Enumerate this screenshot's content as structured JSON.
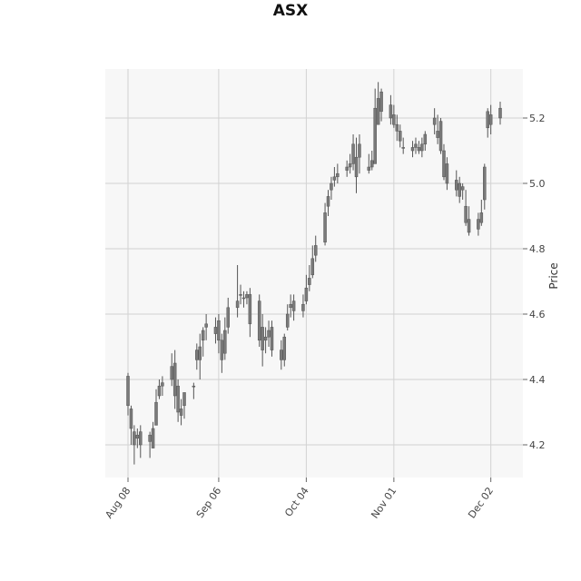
{
  "chart_data": {
    "type": "candlestick",
    "title": "ASX",
    "xlabel": "",
    "ylabel": "Price",
    "y_axis_side": "right",
    "ylim": [
      4.1,
      5.35
    ],
    "yticks": [
      4.2,
      4.4,
      4.6,
      4.8,
      5.0,
      5.2
    ],
    "xtick_labels": [
      "Aug 08",
      "Sep 06",
      "Oct 04",
      "Nov 01",
      "Dec 02"
    ],
    "xtick_dates": [
      "2022-08-08",
      "2022-09-06",
      "2022-10-04",
      "2022-11-01",
      "2022-12-02"
    ],
    "grid": true,
    "colors": {
      "background": "#f7f7f7",
      "grid": "#d2d2d2",
      "candle": "#7a7a7a",
      "candle_edge": "#555555"
    },
    "dates": [
      "2022-08-08",
      "2022-08-09",
      "2022-08-10",
      "2022-08-11",
      "2022-08-12",
      "2022-08-15",
      "2022-08-16",
      "2022-08-17",
      "2022-08-18",
      "2022-08-19",
      "2022-08-22",
      "2022-08-23",
      "2022-08-24",
      "2022-08-25",
      "2022-08-26",
      "2022-08-29",
      "2022-08-30",
      "2022-08-31",
      "2022-09-01",
      "2022-09-02",
      "2022-09-05",
      "2022-09-06",
      "2022-09-07",
      "2022-09-08",
      "2022-09-09",
      "2022-09-12",
      "2022-09-13",
      "2022-09-14",
      "2022-09-15",
      "2022-09-16",
      "2022-09-19",
      "2022-09-20",
      "2022-09-21",
      "2022-09-22",
      "2022-09-23",
      "2022-09-26",
      "2022-09-27",
      "2022-09-28",
      "2022-09-29",
      "2022-09-30",
      "2022-10-03",
      "2022-10-04",
      "2022-10-05",
      "2022-10-06",
      "2022-10-07",
      "2022-10-10",
      "2022-10-11",
      "2022-10-12",
      "2022-10-13",
      "2022-10-14",
      "2022-10-17",
      "2022-10-18",
      "2022-10-19",
      "2022-10-20",
      "2022-10-21",
      "2022-10-24",
      "2022-10-25",
      "2022-10-26",
      "2022-10-27",
      "2022-10-28",
      "2022-10-31",
      "2022-11-01",
      "2022-11-02",
      "2022-11-03",
      "2022-11-04",
      "2022-11-07",
      "2022-11-08",
      "2022-11-09",
      "2022-11-10",
      "2022-11-11",
      "2022-11-14",
      "2022-11-15",
      "2022-11-16",
      "2022-11-17",
      "2022-11-18",
      "2022-11-21",
      "2022-11-22",
      "2022-11-23",
      "2022-11-24",
      "2022-11-25",
      "2022-11-28",
      "2022-11-29",
      "2022-11-30",
      "2022-12-01",
      "2022-12-02",
      "2022-12-05"
    ],
    "open": [
      4.41,
      4.31,
      4.24,
      4.23,
      4.24,
      4.21,
      4.19,
      4.26,
      4.35,
      4.38,
      4.4,
      4.45,
      4.38,
      4.29,
      4.32,
      4.38,
      4.49,
      4.46,
      4.52,
      4.56,
      4.54,
      4.58,
      4.52,
      4.48,
      4.56,
      4.62,
      4.66,
      4.65,
      4.65,
      4.66,
      4.64,
      4.56,
      4.52,
      4.53,
      4.56,
      4.49,
      4.46,
      4.56,
      4.62,
      4.64,
      4.61,
      4.64,
      4.69,
      4.72,
      4.78,
      4.82,
      4.93,
      4.98,
      5.01,
      5.02,
      5.04,
      5.05,
      5.06,
      5.08,
      5.12,
      5.04,
      5.05,
      5.06,
      5.18,
      5.28,
      5.24,
      5.21,
      5.18,
      5.16,
      5.11,
      5.11,
      5.12,
      5.11,
      5.1,
      5.12,
      5.18,
      5.16,
      5.19,
      5.1,
      5.06,
      5.01,
      5.0,
      4.98,
      4.93,
      4.89,
      4.86,
      4.88,
      4.95,
      5.17,
      5.18,
      5.2
    ],
    "high": [
      4.42,
      4.32,
      4.26,
      4.25,
      4.26,
      4.24,
      4.27,
      4.37,
      4.4,
      4.41,
      4.48,
      4.49,
      4.4,
      4.34,
      4.36,
      4.39,
      4.51,
      4.54,
      4.56,
      4.6,
      4.59,
      4.6,
      4.54,
      4.59,
      4.65,
      4.75,
      4.69,
      4.67,
      4.67,
      4.68,
      4.66,
      4.6,
      4.56,
      4.58,
      4.58,
      4.52,
      4.54,
      4.63,
      4.66,
      4.66,
      4.66,
      4.72,
      4.75,
      4.81,
      4.84,
      4.94,
      4.98,
      5.02,
      5.05,
      5.06,
      5.07,
      5.09,
      5.15,
      5.14,
      5.15,
      5.09,
      5.1,
      5.29,
      5.31,
      5.29,
      5.27,
      5.24,
      5.21,
      5.18,
      5.14,
      5.13,
      5.14,
      5.13,
      5.14,
      5.16,
      5.23,
      5.21,
      5.2,
      5.12,
      5.08,
      5.04,
      5.02,
      5.0,
      4.98,
      4.93,
      4.91,
      4.95,
      5.06,
      5.23,
      5.24,
      5.25
    ],
    "low": [
      4.29,
      4.2,
      4.14,
      4.19,
      4.16,
      4.16,
      4.19,
      4.26,
      4.34,
      4.35,
      4.38,
      4.31,
      4.27,
      4.26,
      4.28,
      4.34,
      4.43,
      4.4,
      4.47,
      4.52,
      4.51,
      4.48,
      4.42,
      4.46,
      4.54,
      4.59,
      4.63,
      4.62,
      4.63,
      4.53,
      4.5,
      4.44,
      4.48,
      4.5,
      4.47,
      4.43,
      4.44,
      4.55,
      4.59,
      4.58,
      4.59,
      4.63,
      4.67,
      4.71,
      4.76,
      4.81,
      4.9,
      4.95,
      4.99,
      5.0,
      5.02,
      5.03,
      5.04,
      4.97,
      5.03,
      5.03,
      5.04,
      5.06,
      5.18,
      5.19,
      5.18,
      5.17,
      5.13,
      5.11,
      5.09,
      5.08,
      5.09,
      5.09,
      5.08,
      5.1,
      5.15,
      5.12,
      5.09,
      5.01,
      4.98,
      4.96,
      4.94,
      4.95,
      4.87,
      4.84,
      4.84,
      4.87,
      4.92,
      5.14,
      5.15,
      5.18
    ],
    "close": [
      4.32,
      4.25,
      4.2,
      4.22,
      4.2,
      4.23,
      4.25,
      4.33,
      4.38,
      4.39,
      4.44,
      4.35,
      4.3,
      4.31,
      4.36,
      4.38,
      4.46,
      4.5,
      4.55,
      4.57,
      4.56,
      4.52,
      4.46,
      4.55,
      4.62,
      4.64,
      4.66,
      4.65,
      4.66,
      4.57,
      4.52,
      4.49,
      4.53,
      4.55,
      4.49,
      4.46,
      4.53,
      4.6,
      4.63,
      4.61,
      4.63,
      4.68,
      4.71,
      4.77,
      4.81,
      4.91,
      4.96,
      5.0,
      5.02,
      5.03,
      5.05,
      5.06,
      5.12,
      5.02,
      5.08,
      5.05,
      5.07,
      5.23,
      5.26,
      5.22,
      5.2,
      5.18,
      5.16,
      5.13,
      5.11,
      5.1,
      5.11,
      5.1,
      5.12,
      5.15,
      5.2,
      5.14,
      5.1,
      5.02,
      5.0,
      4.98,
      4.96,
      4.99,
      4.88,
      4.85,
      4.89,
      4.91,
      5.05,
      5.22,
      5.21,
      5.23
    ]
  }
}
